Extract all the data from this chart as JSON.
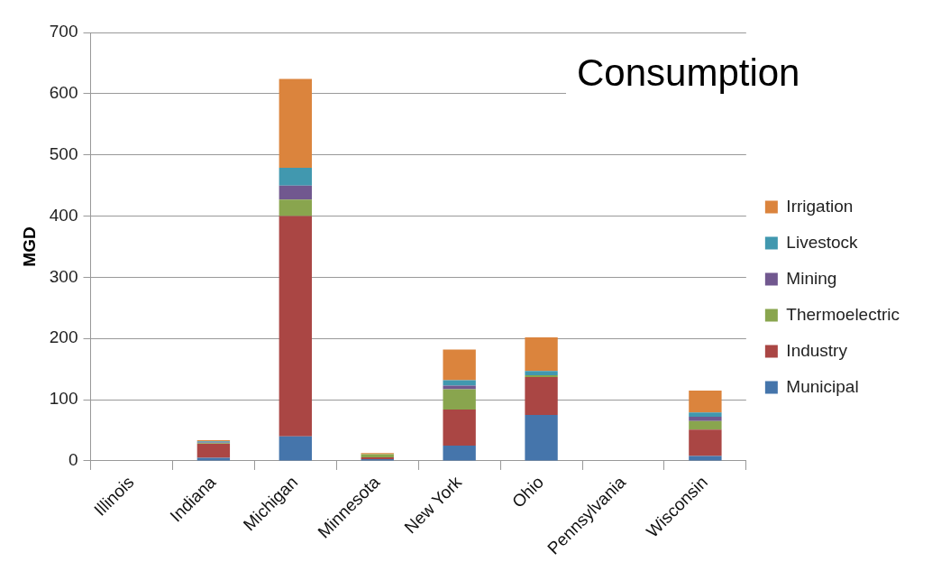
{
  "chart_data": {
    "type": "bar",
    "title": "Consumption",
    "ylabel": "MGD",
    "stacked": true,
    "legend": "right",
    "grid": "y",
    "categories": [
      "Illinois",
      "Indiana",
      "Michigan",
      "Minnesota",
      "New York",
      "Ohio",
      "Pennsylvania",
      "Wisconsin"
    ],
    "ylim": [
      0,
      700
    ],
    "yticks": [
      0,
      100,
      200,
      300,
      400,
      500,
      600,
      700
    ],
    "series": [
      {
        "name": "Municipal",
        "color": "#4575ab",
        "values": [
          0,
          5,
          40,
          3,
          25,
          75,
          0,
          8
        ]
      },
      {
        "name": "Industry",
        "color": "#aa4644",
        "values": [
          0,
          23,
          360,
          3,
          59,
          62,
          0,
          43
        ]
      },
      {
        "name": "Thermoelectric",
        "color": "#89a54e",
        "values": [
          0,
          1,
          27,
          5,
          33,
          3,
          0,
          14
        ]
      },
      {
        "name": "Mining",
        "color": "#71588f",
        "values": [
          0,
          1,
          23,
          0,
          6,
          0,
          0,
          7
        ]
      },
      {
        "name": "Livestock",
        "color": "#4198af",
        "values": [
          0,
          2,
          29,
          null,
          9,
          7,
          0,
          7
        ]
      },
      {
        "name": "Irrigation",
        "color": "#db843d",
        "values": [
          0,
          2,
          145,
          2,
          50,
          55,
          0,
          36
        ]
      }
    ]
  }
}
